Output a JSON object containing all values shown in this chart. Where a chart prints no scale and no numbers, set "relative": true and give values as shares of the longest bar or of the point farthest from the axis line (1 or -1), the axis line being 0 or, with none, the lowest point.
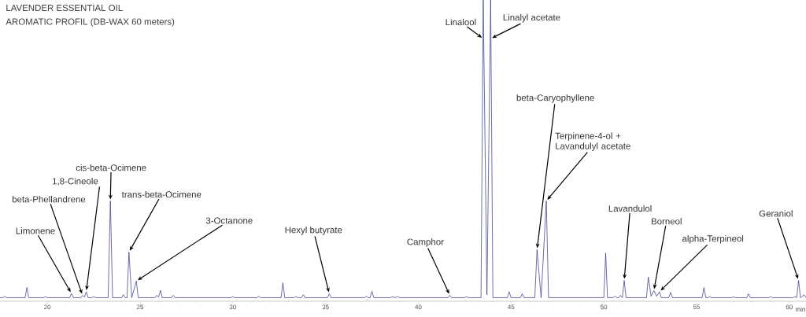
{
  "chart_data": {
    "type": "line",
    "title": "LAVENDER ESSENTIAL OIL",
    "subtitle": "AROMATIC PROFIL (DB-WAX 60 meters)",
    "xlabel": "min",
    "relative": true,
    "color": "#2e2e8a",
    "marker": "none",
    "line_style": "solid",
    "xlim": [
      17.45,
      60.9
    ],
    "xticks": [
      20,
      25,
      30,
      35,
      40,
      45,
      50,
      55,
      60
    ],
    "x": [
      17.45,
      17.6,
      17.7,
      17.8,
      18.8,
      18.9,
      19.0,
      19.8,
      19.9,
      20.0,
      21.2,
      21.3,
      21.4,
      21.8,
      21.9,
      22.0,
      22.1,
      22.2,
      22.4,
      22.5,
      22.6,
      23.28,
      23.4,
      23.52,
      24.0,
      24.1,
      24.2,
      24.3,
      24.4,
      24.55,
      24.8,
      24.9,
      25.8,
      25.9,
      26.0,
      26.1,
      26.2,
      26.7,
      26.8,
      26.9,
      29.9,
      30.0,
      30.1,
      31.3,
      31.4,
      31.5,
      32.6,
      32.7,
      32.8,
      33.3,
      33.4,
      33.5,
      33.7,
      33.8,
      33.9,
      35.1,
      35.2,
      35.3,
      37.1,
      37.2,
      37.3,
      37.4,
      37.5,
      37.6,
      38.5,
      38.6,
      38.75,
      38.9,
      39.0,
      41.6,
      41.7,
      41.8,
      42.5,
      42.6,
      42.7,
      43.38,
      43.5,
      43.7,
      43.9,
      44.02,
      44.8,
      44.9,
      45.0,
      45.5,
      45.6,
      45.7,
      46.28,
      46.4,
      46.62,
      46.9,
      47.02,
      50.0,
      50.1,
      50.2,
      50.5,
      50.6,
      50.7,
      50.8,
      50.9,
      51.0,
      51.1,
      51.2,
      52.3,
      52.4,
      52.55,
      52.7,
      52.85,
      53.0,
      53.1,
      53.5,
      53.6,
      53.7,
      55.3,
      55.4,
      55.5,
      55.6,
      55.7,
      55.8,
      56.9,
      57.0,
      57.1,
      57.7,
      57.8,
      57.9,
      58.9,
      59.0,
      59.1,
      60.2,
      60.3,
      60.4,
      60.5,
      60.6,
      60.8,
      60.9
    ],
    "values": [
      0,
      0,
      0.005,
      0,
      0,
      0.034,
      0,
      0,
      0.004,
      0,
      0,
      0.014,
      0,
      0,
      0.008,
      0.002,
      0.02,
      0,
      0,
      0.004,
      0,
      0,
      0.325,
      0,
      0,
      0.01,
      0,
      0,
      0.153,
      0,
      0.056,
      0,
      0,
      0.008,
      0.002,
      0.025,
      0,
      0,
      0.008,
      0,
      0,
      0.004,
      0,
      0,
      0.005,
      0,
      0,
      0.05,
      0,
      0,
      0.004,
      0,
      0,
      0.01,
      0,
      0,
      0.013,
      0,
      0,
      0.005,
      0,
      0,
      0.021,
      0,
      0,
      0.004,
      0,
      0.004,
      0,
      0,
      0.008,
      0,
      0,
      0.004,
      0,
      0,
      1,
      0.01,
      1,
      0,
      0,
      0.02,
      0,
      0,
      0.013,
      0,
      0,
      0.161,
      0,
      0.325,
      0,
      0,
      0.15,
      0,
      0,
      0.006,
      0,
      0,
      0.008,
      0,
      0.058,
      0,
      0,
      0.069,
      0.005,
      0.024,
      0.005,
      0.02,
      0,
      0,
      0.018,
      0,
      0,
      0.034,
      0,
      0,
      0.004,
      0,
      0,
      0.003,
      0,
      0,
      0.013,
      0,
      0,
      0.004,
      0,
      0,
      0.004,
      0,
      0.058,
      0,
      0.01,
      0
    ],
    "annotations": [
      {
        "text": "Limonene",
        "x": 21.3,
        "y": 0.014
      },
      {
        "text": "beta-Phellandrene",
        "x": 21.9,
        "y": 0.008
      },
      {
        "text": "1,8-Cineole",
        "x": 22.1,
        "y": 0.02
      },
      {
        "text": "cis-beta-Ocimene",
        "x": 23.4,
        "y": 0.325
      },
      {
        "text": "trans-beta-Ocimene",
        "x": 24.4,
        "y": 0.153
      },
      {
        "text": "3-Octanone",
        "x": 24.8,
        "y": 0.056
      },
      {
        "text": "Hexyl butyrate",
        "x": 35.2,
        "y": 0.013
      },
      {
        "text": "Camphor",
        "x": 41.7,
        "y": 0.008
      },
      {
        "text": "Linalool",
        "x": 43.5,
        "y": 0.87
      },
      {
        "text": "Linalyl acetate",
        "x": 43.9,
        "y": 0.87
      },
      {
        "text": "beta-Caryophyllene",
        "x": 46.4,
        "y": 0.161
      },
      {
        "text": "Terpinene-4-ol + Lavandulyl acetate",
        "x": 46.9,
        "y": 0.325
      },
      {
        "text": "Lavandulol",
        "x": 51.1,
        "y": 0.058
      },
      {
        "text": "Borneol",
        "x": 52.7,
        "y": 0.024
      },
      {
        "text": "alpha-Terpineol",
        "x": 53.0,
        "y": 0.02
      },
      {
        "text": "Geraniol",
        "x": 60.5,
        "y": 0.058
      }
    ]
  }
}
